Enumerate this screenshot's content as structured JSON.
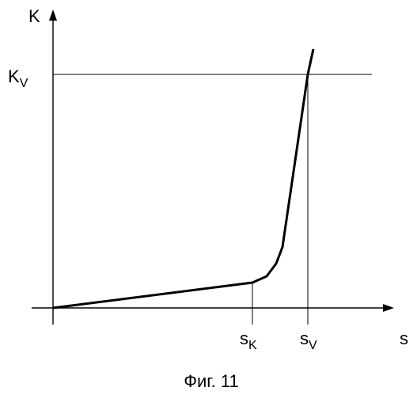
{
  "figure": {
    "caption": "Фиг. 11",
    "y_axis_label": {
      "main": "K",
      "sub": ""
    },
    "x_axis_label": {
      "main": "s",
      "sub": ""
    },
    "y_marker_label": {
      "main": "K",
      "sub": "V"
    },
    "x_marker_k_label": {
      "main": "s",
      "sub": "K"
    },
    "x_marker_v_label": {
      "main": "s",
      "sub": "V"
    }
  },
  "colors": {
    "ink": "#000000",
    "background": "#ffffff"
  }
}
